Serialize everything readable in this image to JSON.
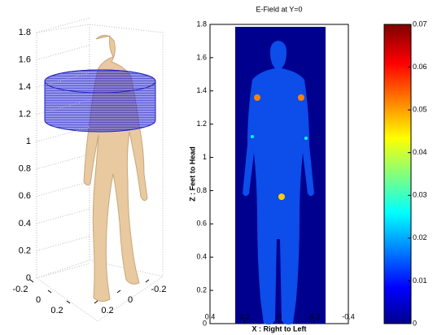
{
  "chart_data": [
    {
      "type": "surface3d",
      "zlim": [
        0,
        1.8
      ],
      "zticks": [
        0,
        0.2,
        0.4,
        0.6,
        0.8,
        1,
        1.2,
        1.4,
        1.6,
        1.8
      ],
      "xticks": [
        -0.2,
        0,
        0.2
      ],
      "yticks": [
        0.2,
        0,
        -0.2
      ]
    },
    {
      "type": "heatmap",
      "title": "E-Field at Y=0",
      "xlabel": "X : Right to Left",
      "ylabel": "Z : Feet to Head",
      "xlim": [
        0.4,
        -0.4
      ],
      "xticks": [
        0.4,
        0.2,
        0,
        -0.2,
        -0.4
      ],
      "ylim": [
        0,
        1.8
      ],
      "yticks": [
        0,
        0.2,
        0.4,
        0.6,
        0.8,
        1,
        1.2,
        1.4,
        1.6,
        1.8
      ]
    },
    {
      "type": "colorbar",
      "ylim": [
        0,
        0.07
      ],
      "yticks": [
        0,
        0.01,
        0.02,
        0.03,
        0.04,
        0.05,
        0.06,
        0.07
      ]
    }
  ]
}
